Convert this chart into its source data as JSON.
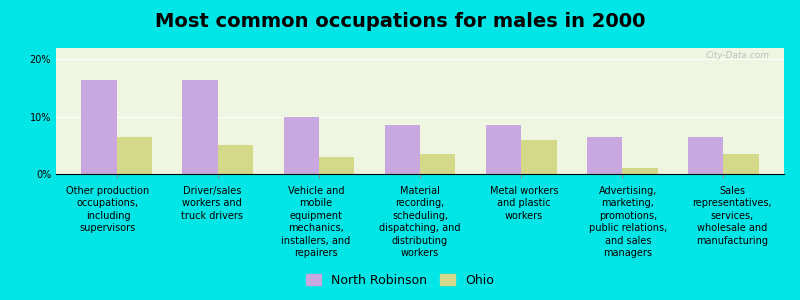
{
  "title": "Most common occupations for males in 2000",
  "categories": [
    "Other production\noccupations,\nincluding\nsupervisors",
    "Driver/sales\nworkers and\ntruck drivers",
    "Vehicle and\nmobile\nequipment\nmechanics,\ninstallers, and\nrepairers",
    "Material\nrecording,\nscheduling,\ndispatching, and\ndistributing\nworkers",
    "Metal workers\nand plastic\nworkers",
    "Advertising,\nmarketing,\npromotions,\npublic relations,\nand sales\nmanagers",
    "Sales\nrepresentatives,\nservices,\nwholesale and\nmanufacturing"
  ],
  "north_robinson": [
    16.5,
    16.5,
    10.0,
    8.5,
    8.5,
    6.5,
    6.5
  ],
  "ohio": [
    6.5,
    5.0,
    3.0,
    3.5,
    6.0,
    1.0,
    3.5
  ],
  "bar_color_nr": "#c9a8e0",
  "bar_color_ohio": "#d4d98a",
  "background_outer": "#00e5e5",
  "background_plot": "#eef5e0",
  "legend_nr": "North Robinson",
  "legend_ohio": "Ohio",
  "yticks": [
    0,
    10,
    20
  ],
  "ytick_labels": [
    "0%",
    "10%",
    "20%"
  ],
  "ylim": [
    0,
    22
  ],
  "title_fontsize": 14,
  "label_fontsize": 7,
  "legend_fontsize": 9,
  "watermark": "City-Data.com",
  "bar_width": 0.35
}
